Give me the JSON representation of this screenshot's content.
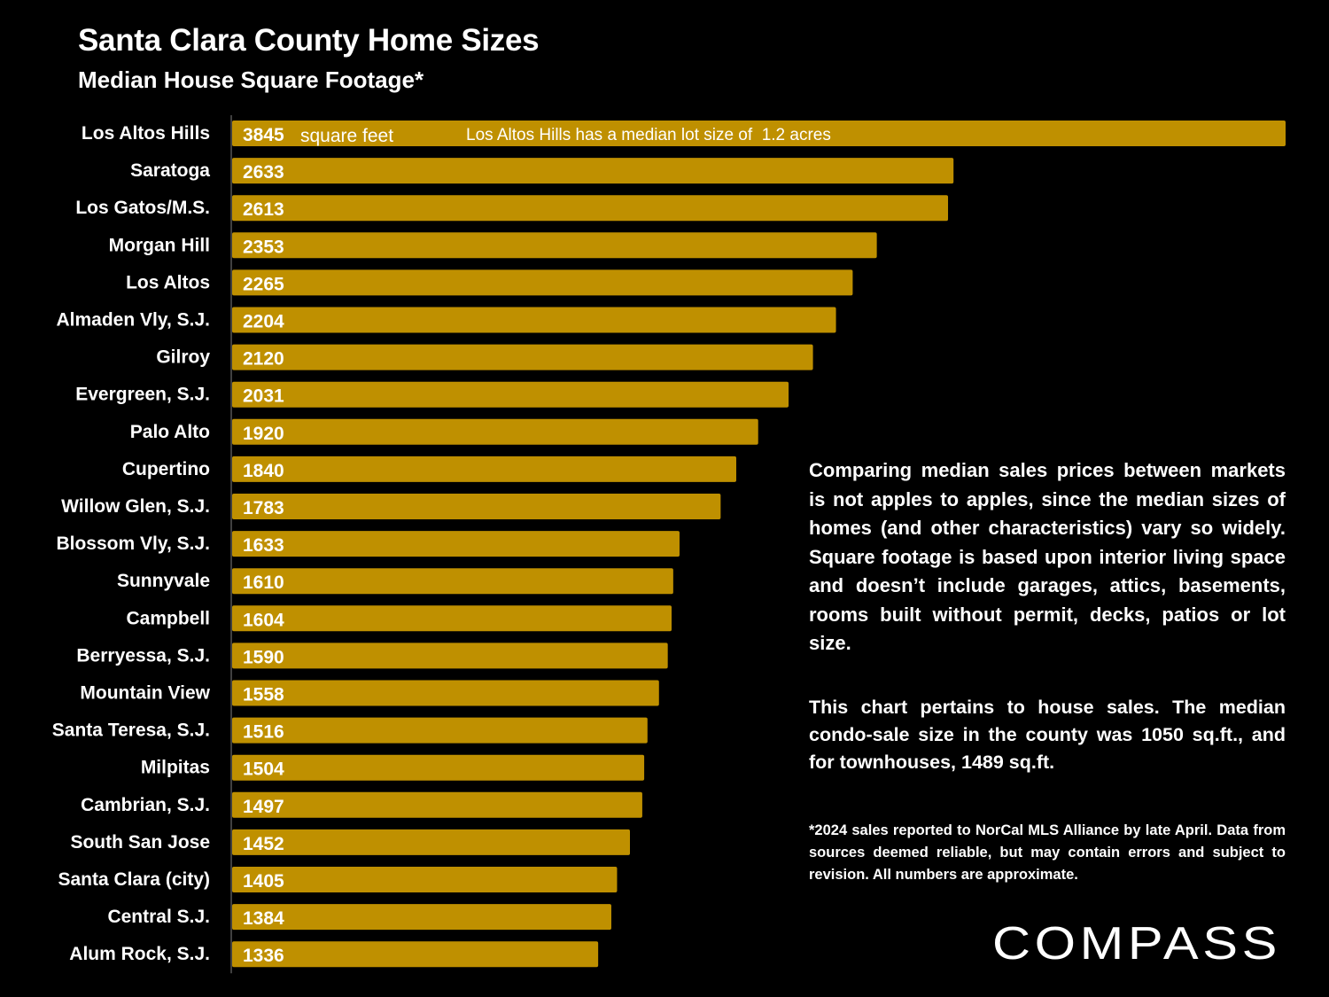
{
  "chart_data": {
    "type": "bar",
    "orientation": "horizontal",
    "title": "Santa Clara County Home Sizes",
    "subtitle": "Median House Square Footage*",
    "xlabel": "",
    "ylabel": "",
    "xlim": [
      0,
      3845
    ],
    "grid": false,
    "bar_color": "#BF9000",
    "categories": [
      "Los Altos Hills",
      "Saratoga",
      "Los Gatos/M.S.",
      "Morgan Hill",
      "Los Altos",
      "Almaden Vly, S.J.",
      "Gilroy",
      "Evergreen, S.J.",
      "Palo Alto",
      "Cupertino",
      "Willow Glen, S.J.",
      "Blossom Vly, S.J.",
      "Sunnyvale",
      "Campbell",
      "Berryessa, S.J.",
      "Mountain View",
      "Santa Teresa, S.J.",
      "Milpitas",
      "Cambrian, S.J.",
      "South San Jose",
      "Santa Clara (city)",
      "Central S.J.",
      "Alum Rock, S.J."
    ],
    "values": [
      3845,
      2633,
      2613,
      2353,
      2265,
      2204,
      2120,
      2031,
      1920,
      1840,
      1783,
      1633,
      1610,
      1604,
      1590,
      1558,
      1516,
      1504,
      1497,
      1452,
      1405,
      1384,
      1336
    ],
    "annotations": {
      "unit_label": "square feet",
      "top_bar_note": "Los Altos Hills has a median lot size of  1.2 acres"
    }
  },
  "notes": {
    "main": "Comparing median sales prices between markets is not apples to apples, since the median sizes of homes (and other characteristics) vary so widely. Square footage is based upon interior living space and doesn’t include garages, attics, basements, rooms built without permit, decks, patios or lot size.",
    "condo": "This chart pertains to house sales. The median condo-sale size in the county was 1050 sq.ft., and for townhouses, 1489 sq.ft.",
    "footnote": "*2024 sales reported to NorCal MLS Alliance by late April. Data from sources deemed reliable, but may contain errors and subject to revision. All numbers are approximate."
  },
  "brand": {
    "logo_text": "COMPASS"
  }
}
